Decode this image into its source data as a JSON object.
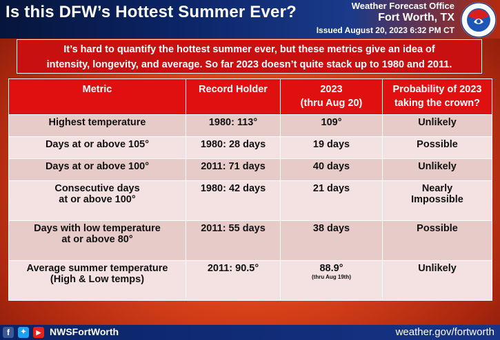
{
  "header": {
    "title": "Is this DFW’s Hottest Summer Ever?",
    "office_line1": "Weather Forecast Office",
    "office_line2": "Fort Worth, TX",
    "issued": "Issued August 20, 2023 6:32 PM CT",
    "logo_text": "NATIONAL WEATHER SERVICE"
  },
  "intro": {
    "line1": "It’s hard to quantify the hottest summer ever, but these metrics give an idea of",
    "line2": "intensity, longevity, and average.  So far 2023 doesn’t quite stack up to 1980 and 2011."
  },
  "table": {
    "headers": {
      "metric": "Metric",
      "holder": "Record Holder",
      "y2023_l1": "2023",
      "y2023_l2": "(thru Aug 20)",
      "prob_l1": "Probability of 2023",
      "prob_l2": "taking the crown?"
    },
    "rows": [
      {
        "metric_l1": "Highest temperature",
        "metric_l2": "",
        "holder": "1980: 113°",
        "value": "109°",
        "note": "",
        "prob_l1": "Unlikely",
        "prob_l2": ""
      },
      {
        "metric_l1": "Days at or above 105°",
        "metric_l2": "",
        "holder": "1980: 28 days",
        "value": "19 days",
        "note": "",
        "prob_l1": "Possible",
        "prob_l2": ""
      },
      {
        "metric_l1": "Days at or above 100°",
        "metric_l2": "",
        "holder": "2011: 71 days",
        "value": "40 days",
        "note": "",
        "prob_l1": "Unlikely",
        "prob_l2": ""
      },
      {
        "metric_l1": "Consecutive days",
        "metric_l2": "at or above 100°",
        "holder": "1980: 42 days",
        "value": "21 days",
        "note": "",
        "prob_l1": "Nearly",
        "prob_l2": "Impossible"
      },
      {
        "metric_l1": "Days with low temperature",
        "metric_l2": "at or above 80°",
        "holder": "2011: 55 days",
        "value": "38 days",
        "note": "",
        "prob_l1": "Possible",
        "prob_l2": ""
      },
      {
        "metric_l1": "Average summer temperature",
        "metric_l2": "(High & Low temps)",
        "holder": "2011: 90.5°",
        "value": "88.9°",
        "note": "(thru Aug 19th)",
        "prob_l1": "Unlikely",
        "prob_l2": ""
      }
    ]
  },
  "footer": {
    "handle": "NWSFortWorth",
    "site": "weather.gov/fortworth",
    "icons": [
      "facebook-icon",
      "twitter-icon",
      "youtube-icon"
    ]
  },
  "colors": {
    "header_blue": "#0b2466",
    "table_header_red": "#e01010",
    "row_odd": "#e7cbc9",
    "row_even": "#f3e2e1"
  }
}
